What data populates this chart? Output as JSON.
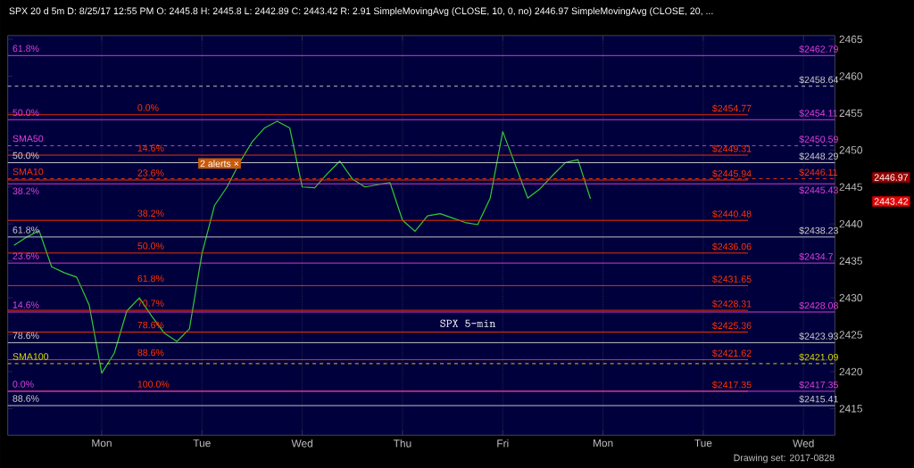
{
  "chart_data": {
    "type": "line",
    "title": "SPX 20 d 5m   D: 8/25/17 12:55 PM   O: 2445.8   H: 2445.8   L: 2442.89   C: 2443.42   R: 2.91   SimpleMovingAvg (CLOSE, 10, 0, no) 2446.97   SimpleMovingAvg (CLOSE, 20, ...",
    "categories": [
      null,
      null,
      null,
      null,
      null,
      null,
      null,
      "Mon",
      null,
      null,
      null,
      null,
      null,
      null,
      null,
      "Tue",
      null,
      null,
      null,
      null,
      null,
      null,
      null,
      "Wed",
      null,
      null,
      null,
      null,
      null,
      null,
      null,
      "Thu",
      null,
      null,
      null,
      null,
      null,
      null,
      null,
      "Fri",
      null,
      null,
      null,
      null,
      null,
      null,
      null,
      "Mon",
      null,
      null,
      null,
      null,
      null,
      null,
      null,
      "Tue",
      null,
      null,
      null,
      null,
      null,
      null,
      null,
      "Wed",
      null,
      null
    ],
    "series": [
      {
        "color": "#33cc33",
        "values": [
          2437.1,
          2438.2,
          2439.1,
          2434.2,
          2433.4,
          2432.8,
          2429.0,
          2419.8,
          2422.5,
          2428.2,
          2430.0,
          2427.5,
          2425.2,
          2424.1,
          2425.8,
          2436.0,
          2442.5,
          2445.0,
          2448.3,
          2451.1,
          2453.0,
          2453.9,
          2453.0,
          2445.0,
          2444.9,
          2446.8,
          2448.5,
          2446.1,
          2445.0,
          2445.3,
          2445.6,
          2440.5,
          2439.0,
          2441.1,
          2441.4,
          2440.8,
          2440.2,
          2439.9,
          2443.5,
          2452.5,
          2448.0,
          2443.5,
          2444.8,
          2446.6,
          2448.3,
          2448.7,
          2443.4,
          null,
          null,
          null,
          null,
          null,
          null,
          null,
          null,
          null,
          null,
          null,
          null,
          null,
          null,
          null,
          null,
          null,
          null,
          null
        ]
      }
    ],
    "ylim": [
      2411.4,
      2465.5
    ],
    "yticks": [
      2415,
      2420,
      2425,
      2430,
      2435,
      2440,
      2445,
      2450,
      2455,
      2460,
      2465
    ],
    "grid": "x",
    "marker": "none",
    "line_style": "solid",
    "ref_lines": [
      {
        "axis": "y",
        "value": 2462.79,
        "label": "$2462.79",
        "color": "#e040e0"
      },
      {
        "axis": "y",
        "value": 2458.64,
        "label": "$2458.64",
        "color": "#d0d0d0",
        "line_style": "dashed"
      },
      {
        "axis": "y",
        "value": 2454.77,
        "label": "$2454.77",
        "color": "#ff3300"
      },
      {
        "axis": "y",
        "value": 2454.11,
        "label": "$2454.11",
        "color": "#e040e0"
      },
      {
        "axis": "y",
        "value": 2450.59,
        "label": "$2450.59",
        "color": "#e040e0",
        "line_style": "dashed"
      },
      {
        "axis": "y",
        "value": 2449.31,
        "label": "$2449.31",
        "color": "#ff3300"
      },
      {
        "axis": "y",
        "value": 2448.29,
        "label": "$2448.29",
        "color": "#d0d0d0"
      },
      {
        "axis": "y",
        "value": 2446.11,
        "label": "$2446.11",
        "color": "#ff3300",
        "line_style": "dashed"
      },
      {
        "axis": "y",
        "value": 2445.94,
        "label": "$2445.94",
        "color": "#ff3300"
      },
      {
        "axis": "y",
        "value": 2445.43,
        "label": "$2445.43",
        "color": "#e040e0"
      },
      {
        "axis": "y",
        "value": 2440.48,
        "label": "$2440.48",
        "color": "#ff3300"
      },
      {
        "axis": "y",
        "value": 2438.23,
        "label": "$2438.23",
        "color": "#d0d0d0"
      },
      {
        "axis": "y",
        "value": 2436.06,
        "label": "$2436.06",
        "color": "#ff3300"
      },
      {
        "axis": "y",
        "value": 2434.7,
        "label": "$2434.7",
        "color": "#e040e0"
      },
      {
        "axis": "y",
        "value": 2431.65,
        "label": "$2431.65",
        "color": "#ff3300"
      },
      {
        "axis": "y",
        "value": 2428.31,
        "label": "$2428.31",
        "color": "#ff3300"
      },
      {
        "axis": "y",
        "value": 2428.08,
        "label": "$2428.08",
        "color": "#e040e0"
      },
      {
        "axis": "y",
        "value": 2425.36,
        "label": "$2425.36",
        "color": "#ff3300"
      },
      {
        "axis": "y",
        "value": 2423.93,
        "label": "$2423.93",
        "color": "#d0d0d0"
      },
      {
        "axis": "y",
        "value": 2421.62,
        "label": "$2421.62",
        "color": "#ff3300"
      },
      {
        "axis": "y",
        "value": 2421.09,
        "label": "$2421.09",
        "color": "#e0e000",
        "line_style": "dashed"
      },
      {
        "axis": "y",
        "value": 2417.35,
        "label": "$2417.35",
        "color": "#ff3300"
      },
      {
        "axis": "y",
        "value": 2417.35,
        "label": "$2417.35",
        "color": "#e040e0"
      },
      {
        "axis": "y",
        "value": 2415.41,
        "label": "$2415.41",
        "color": "#d0d0d0"
      }
    ],
    "annotations": [
      {
        "text": "61.8%",
        "y": 2462.79
      },
      {
        "text": "50.0%",
        "y": 2454.11
      },
      {
        "text": "SMA50",
        "y": 2450.59
      },
      {
        "text": "50.0%",
        "y": 2448.29
      },
      {
        "text": "SMA10",
        "y": 2446.11
      },
      {
        "text": "38.2%",
        "y": 2445.43
      },
      {
        "text": "61.8%",
        "y": 2438.23
      },
      {
        "text": "23.6%",
        "y": 2434.7
      },
      {
        "text": "14.6%",
        "y": 2428.08
      },
      {
        "text": "78.6%",
        "y": 2423.93
      },
      {
        "text": "SMA100",
        "y": 2421.09
      },
      {
        "text": "0.0%",
        "y": 2417.35
      },
      {
        "text": "88.6%",
        "y": 2415.41
      },
      {
        "text": "0.0%",
        "y": 2454.77
      },
      {
        "text": "14.6%",
        "y": 2449.31
      },
      {
        "text": "23.6%",
        "y": 2445.94
      },
      {
        "text": "38.2%",
        "y": 2440.48
      },
      {
        "text": "50.0%",
        "y": 2436.06
      },
      {
        "text": "61.8%",
        "y": 2431.65
      },
      {
        "text": "70.7%",
        "y": 2428.31
      },
      {
        "text": "78.6%",
        "y": 2425.36
      },
      {
        "text": "88.6%",
        "y": 2421.62
      },
      {
        "text": "100.0%",
        "y": 2417.35
      },
      "2 alerts ×",
      "SPX 5-min",
      "2446.97",
      "2443.42",
      "Drawing set: 2017-0828"
    ]
  }
}
